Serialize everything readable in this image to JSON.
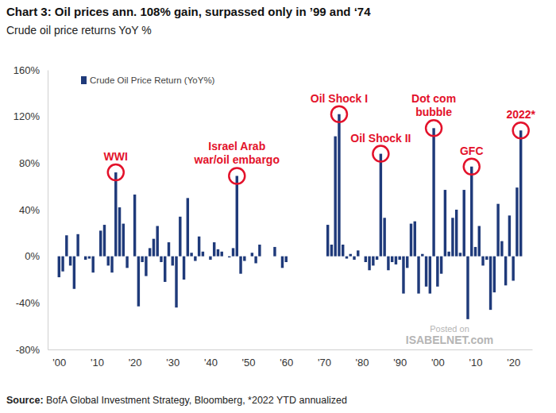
{
  "chart_data": {
    "type": "bar",
    "title": "Chart 3: Oil prices ann. 108% gain, surpassed only in ’99 and ‘74",
    "subtitle": "Crude oil price returns YoY %",
    "source": "Source: BofA Global Investment Strategy, Bloomberg, *2022 YTD annualized",
    "watermark": [
      "Posted on",
      "ISABELNET.com"
    ],
    "x": [
      1900,
      1901,
      1902,
      1903,
      1904,
      1905,
      1906,
      1907,
      1908,
      1909,
      1910,
      1911,
      1912,
      1913,
      1914,
      1915,
      1916,
      1917,
      1918,
      1919,
      1920,
      1921,
      1922,
      1923,
      1924,
      1925,
      1926,
      1927,
      1928,
      1929,
      1930,
      1931,
      1932,
      1933,
      1934,
      1935,
      1936,
      1937,
      1938,
      1939,
      1940,
      1941,
      1942,
      1943,
      1944,
      1945,
      1946,
      1947,
      1948,
      1949,
      1950,
      1951,
      1952,
      1953,
      1954,
      1955,
      1956,
      1957,
      1958,
      1959,
      1960,
      1971,
      1972,
      1973,
      1974,
      1975,
      1976,
      1977,
      1978,
      1979,
      1980,
      1981,
      1982,
      1983,
      1984,
      1985,
      1986,
      1987,
      1988,
      1989,
      1990,
      1991,
      1992,
      1993,
      1994,
      1995,
      1996,
      1997,
      1998,
      1999,
      2000,
      2001,
      2002,
      2003,
      2004,
      2005,
      2006,
      2007,
      2008,
      2009,
      2010,
      2011,
      2012,
      2013,
      2014,
      2015,
      2016,
      2017,
      2018,
      2019,
      2020,
      2021,
      2022
    ],
    "series": [
      {
        "name": "Crude Oil Price Return (YoY%)",
        "color": "#1f3a7a",
        "values": [
          -18,
          -13,
          18,
          -8,
          -28,
          19,
          0,
          -3,
          -2,
          -14,
          0,
          22,
          27,
          -8,
          -14,
          72,
          42,
          28,
          -10,
          0,
          53,
          -43,
          -5,
          -17,
          7,
          15,
          26,
          -5,
          -22,
          12,
          -8,
          -44,
          34,
          -20,
          50,
          3,
          -4,
          17,
          4,
          0,
          -3,
          12,
          6,
          4,
          0,
          -1,
          7,
          69,
          -15,
          -4,
          0,
          3,
          -6,
          10,
          0,
          0,
          0,
          8,
          0,
          -10,
          -5,
          27,
          10,
          103,
          122,
          10,
          -2,
          2,
          -3,
          5,
          0,
          -5,
          -12,
          -8,
          -3,
          88,
          33,
          -12,
          -5,
          -7,
          -3,
          -32,
          -10,
          28,
          30,
          -32,
          2,
          -26,
          -32,
          110,
          -26,
          -15,
          57,
          4,
          33,
          40,
          3,
          57,
          -54,
          77,
          8,
          26,
          -8,
          -3,
          -46,
          -31,
          45,
          13,
          -25,
          35,
          -21,
          59,
          108
        ]
      }
    ],
    "xlim": [
      1897,
      2025
    ],
    "xticks": [
      {
        "value": 1900,
        "label": "'00"
      },
      {
        "value": 1910,
        "label": "'10"
      },
      {
        "value": 1920,
        "label": "'20"
      },
      {
        "value": 1930,
        "label": "'30"
      },
      {
        "value": 1940,
        "label": "'40"
      },
      {
        "value": 1950,
        "label": "'50"
      },
      {
        "value": 1960,
        "label": "'60"
      },
      {
        "value": 1970,
        "label": "'70"
      },
      {
        "value": 1980,
        "label": "'80"
      },
      {
        "value": 1990,
        "label": "'90"
      },
      {
        "value": 2000,
        "label": "'00"
      },
      {
        "value": 2010,
        "label": "'10"
      },
      {
        "value": 2020,
        "label": "'20"
      }
    ],
    "ylim": [
      -80,
      160
    ],
    "yticks": [
      {
        "value": -80,
        "label": "-80%"
      },
      {
        "value": -40,
        "label": "-40%"
      },
      {
        "value": 0,
        "label": "0%"
      },
      {
        "value": 40,
        "label": "40%"
      },
      {
        "value": 80,
        "label": "80%"
      },
      {
        "value": 120,
        "label": "120%"
      },
      {
        "value": 160,
        "label": "160%"
      }
    ],
    "grid": false,
    "legend": "top-left",
    "annotations": [
      {
        "text": [
          "WWI"
        ],
        "x": 1915
      },
      {
        "text": [
          "Israel Arab",
          "war/oil embargo"
        ],
        "x": 1947
      },
      {
        "text": [
          "Oil Shock I"
        ],
        "x": 1974
      },
      {
        "text": [
          "Oil Shock II"
        ],
        "x": 1985
      },
      {
        "text": [
          "Dot com",
          "bubble"
        ],
        "x": 1999
      },
      {
        "text": [
          "GFC"
        ],
        "x": 2009
      },
      {
        "text": [
          "2022*"
        ],
        "x": 2022
      }
    ]
  }
}
